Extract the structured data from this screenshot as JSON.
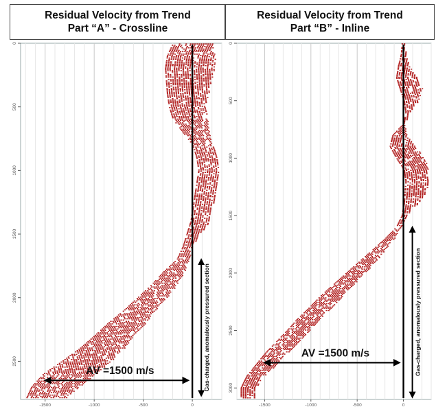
{
  "chart_data": [
    {
      "type": "scatter",
      "title": "Residual Velocity from Trend",
      "subtitle": "Part “A” - Crossline",
      "xlabel": "",
      "ylabel": "",
      "xlim": [
        -1750,
        300
      ],
      "ylim": [
        0,
        2800
      ],
      "y_inverted": true,
      "x_ticks": [
        -1500,
        -1000,
        -500,
        0
      ],
      "y_ticks": [
        0,
        500,
        1000,
        1500,
        2000,
        2500
      ],
      "grid": true,
      "series": [
        {
          "color": "#b22222",
          "envelope_min": {
            "depth": [
              0,
              100,
              200,
              300,
              400,
              500,
              600,
              700,
              800,
              900,
              1000,
              1100,
              1200,
              1300,
              1400,
              1500,
              1600,
              1700,
              1800,
              1900,
              2000,
              2100,
              2200,
              2300,
              2400,
              2500,
              2600,
              2700,
              2800
            ],
            "value": [
              -200,
              -260,
              -280,
              -270,
              -260,
              -240,
              -200,
              -100,
              0,
              40,
              60,
              40,
              20,
              0,
              -20,
              -60,
              -100,
              -160,
              -300,
              -420,
              -560,
              -700,
              -860,
              -1000,
              -1150,
              -1330,
              -1520,
              -1640,
              -1700
            ]
          },
          "envelope_max": {
            "depth": [
              0,
              100,
              200,
              300,
              400,
              500,
              600,
              700,
              800,
              900,
              1000,
              1100,
              1200,
              1300,
              1400,
              1500,
              1600,
              1700,
              1800,
              1900,
              2000,
              2100,
              2200,
              2300,
              2400,
              2500,
              2600,
              2700,
              2800
            ],
            "value": [
              200,
              230,
              220,
              190,
              160,
              130,
              150,
              170,
              200,
              250,
              260,
              250,
              230,
              200,
              180,
              80,
              0,
              -40,
              -80,
              -160,
              -260,
              -380,
              -480,
              -600,
              -700,
              -830,
              -980,
              -1150,
              -1300
            ]
          }
        }
      ],
      "annotations": {
        "arrow_label": "AV =1500 m/s",
        "arrow_from": -1500,
        "arrow_to": 0,
        "arrow_depth": 2650,
        "vertical_label": "Gas-charged, anomalously pressured section",
        "vertical_from": 1700,
        "vertical_to": 2770
      }
    },
    {
      "type": "scatter",
      "title": "Residual Velocity from Trend",
      "subtitle": "Part “B” - Inline",
      "xlabel": "",
      "ylabel": "",
      "xlim": [
        -1800,
        300
      ],
      "ylim": [
        0,
        3100
      ],
      "y_inverted": true,
      "x_ticks": [
        -1500,
        -1000,
        -500,
        0
      ],
      "y_ticks": [
        0,
        500,
        1000,
        1500,
        2000,
        2500,
        3000
      ],
      "grid": true,
      "series": [
        {
          "color": "#b22222",
          "envelope_min": {
            "depth": [
              0,
              100,
              200,
              300,
              400,
              500,
              600,
              700,
              800,
              900,
              1000,
              1100,
              1200,
              1300,
              1400,
              1500,
              1600,
              1700,
              1800,
              1900,
              2000,
              2100,
              2200,
              2300,
              2400,
              2500,
              2600,
              2700,
              2800,
              2900,
              3000
            ],
            "value": [
              -20,
              -30,
              -60,
              -80,
              -40,
              0,
              20,
              0,
              -120,
              -150,
              -80,
              0,
              20,
              10,
              0,
              -20,
              -80,
              -200,
              -340,
              -480,
              -620,
              -760,
              -900,
              -1020,
              -1150,
              -1260,
              -1380,
              -1500,
              -1600,
              -1700,
              -1760
            ]
          },
          "envelope_max": {
            "depth": [
              0,
              100,
              200,
              300,
              400,
              500,
              600,
              700,
              800,
              900,
              1000,
              1100,
              1200,
              1300,
              1400,
              1500,
              1600,
              1700,
              1800,
              1900,
              2000,
              2100,
              2200,
              2300,
              2400,
              2500,
              2600,
              2700,
              2800,
              2900,
              3000
            ],
            "value": [
              20,
              30,
              60,
              140,
              200,
              160,
              80,
              10,
              30,
              120,
              230,
              260,
              280,
              240,
              150,
              40,
              -30,
              -100,
              -200,
              -300,
              -420,
              -540,
              -660,
              -780,
              -900,
              -1020,
              -1140,
              -1260,
              -1380,
              -1500,
              -1600
            ]
          }
        }
      ],
      "annotations": {
        "arrow_label": "AV =1500 m/s",
        "arrow_from": -1500,
        "arrow_to": 0,
        "arrow_depth": 2780,
        "vertical_label": "Gas-charged, anomalously pressured section",
        "vertical_from": 1600,
        "vertical_to": 3080
      }
    }
  ]
}
